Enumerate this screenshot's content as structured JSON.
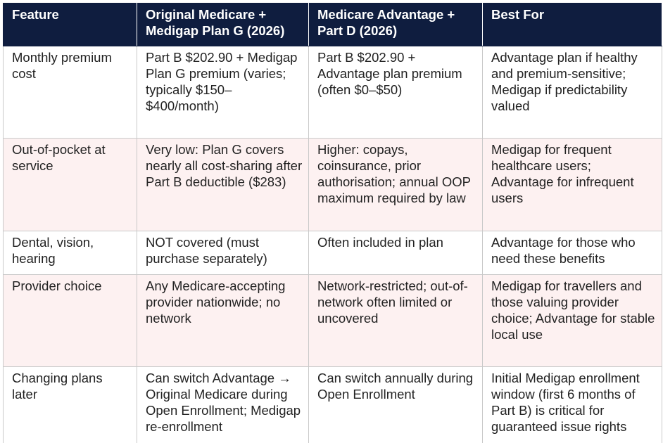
{
  "table": {
    "header": [
      "Feature",
      "Original Medicare + Medigap Plan G (2026)",
      "Medicare Advantage + Part D (2026)",
      "Best For"
    ],
    "rows": [
      [
        "Monthly premium cost",
        "Part B $202.90 + Medigap Plan G premium (varies; typically $150–$400/month)",
        "Part B $202.90 + Advantage plan premium (often $0–$50)",
        "Advantage plan if healthy and premium-sensitive; Medigap if predictability valued"
      ],
      [
        "Out-of-pocket at service",
        "Very low: Plan G covers nearly all cost-sharing after Part B deductible ($283)",
        "Higher: copays, coinsurance, prior authorisation; annual OOP maximum required by law",
        "Medigap for frequent healthcare users; Advantage for infrequent users"
      ],
      [
        "Dental, vision, hearing",
        "NOT covered (must purchase separately)",
        "Often included in plan",
        "Advantage for those who need these benefits"
      ],
      [
        "Provider choice",
        "Any Medicare-accepting provider nationwide; no network",
        "Network-restricted; out-of-network often limited or uncovered",
        "Medigap for travellers and those valuing provider choice; Advantage for stable local use"
      ],
      [
        "Changing plans later",
        "Can switch Advantage → Original Medicare during Open Enrollment; Medigap re-enrollment",
        "Can switch annually during Open Enrollment",
        "Initial Medigap enrollment window (first 6 months of Part B) is critical for guaranteed issue rights"
      ]
    ]
  }
}
